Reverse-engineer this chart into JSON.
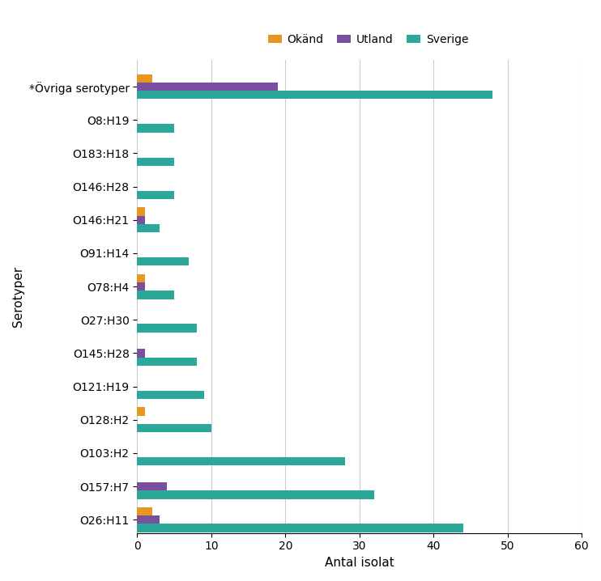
{
  "categories": [
    "*Övriga serotyper",
    "O8:H19",
    "O183:H18",
    "O146:H28",
    "O146:H21",
    "O91:H14",
    "O78:H4",
    "O27:H30",
    "O145:H28",
    "O121:H19",
    "O128:H2",
    "O103:H2",
    "O157:H7",
    "O26:H11"
  ],
  "okand": [
    2,
    0,
    0,
    0,
    1,
    0,
    1,
    0,
    0,
    0,
    1,
    0,
    0,
    2
  ],
  "utland": [
    19,
    0,
    0,
    0,
    1,
    0,
    1,
    0,
    1,
    0,
    0,
    0,
    4,
    3
  ],
  "sverige": [
    48,
    5,
    5,
    5,
    3,
    7,
    5,
    8,
    8,
    9,
    10,
    28,
    32,
    44
  ],
  "color_okand": "#E8961E",
  "color_utland": "#7B4FA0",
  "color_sverige": "#2BA89A",
  "xlabel": "Antal isolat",
  "ylabel": "Serotyper",
  "xlim": [
    0,
    60
  ],
  "xticks": [
    0,
    10,
    20,
    30,
    40,
    50,
    60
  ],
  "legend_labels": [
    "Okänd",
    "Utland",
    "Sverige"
  ],
  "bar_height": 0.25
}
